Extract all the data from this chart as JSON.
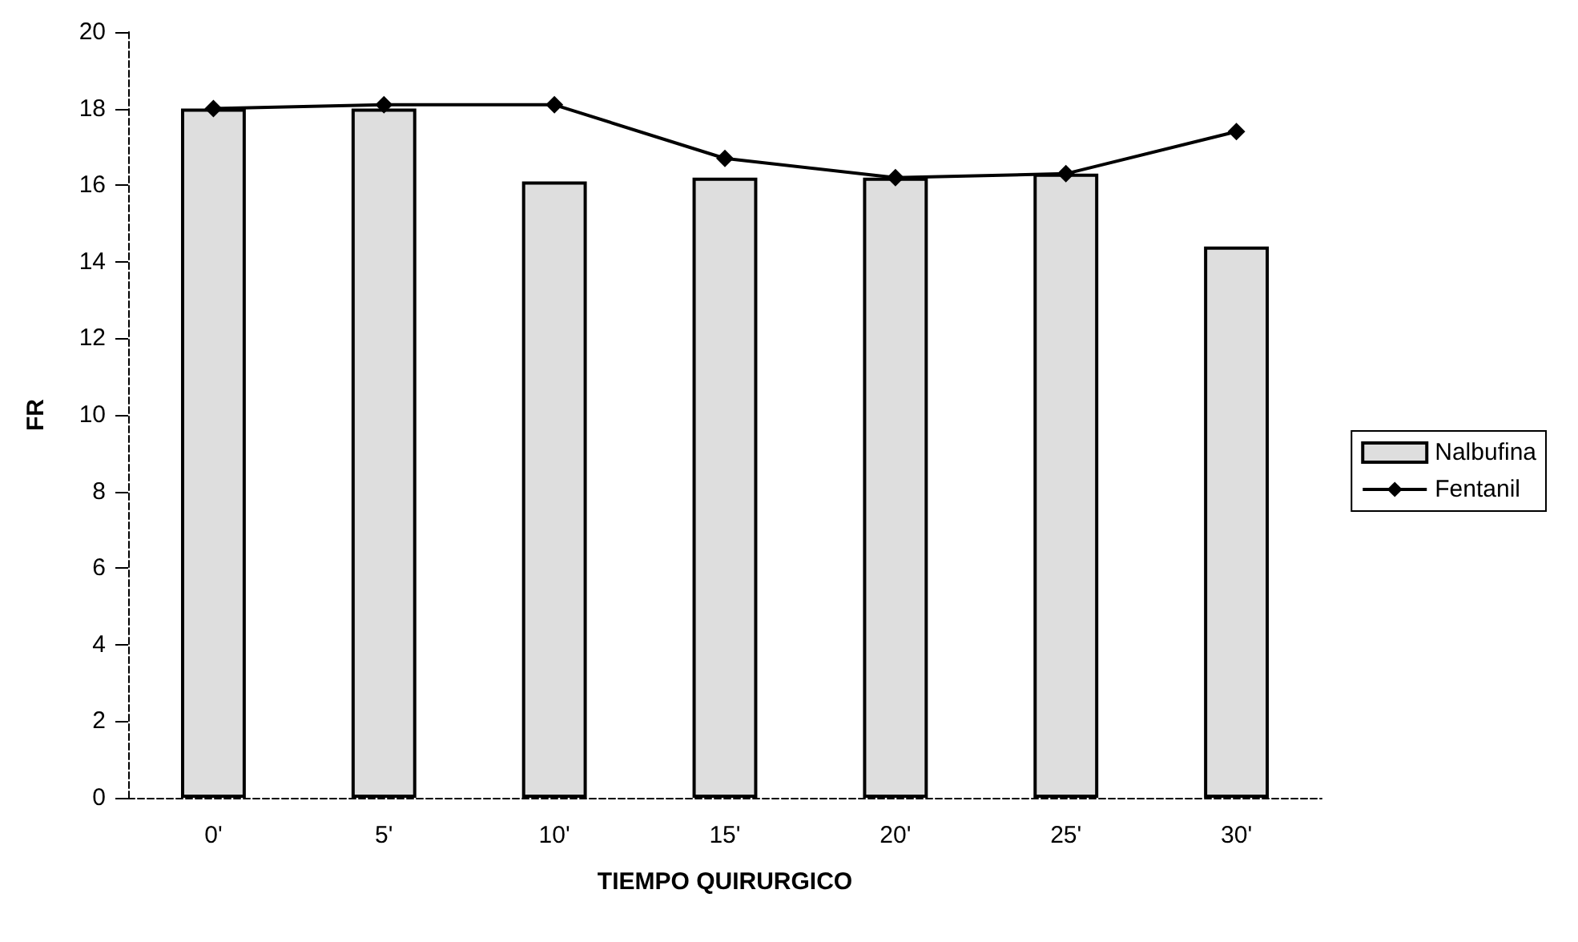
{
  "chart_data": {
    "type": "bar",
    "xlabel": "TIEMPO QUIRURGICO",
    "ylabel": "FR",
    "categories": [
      "0'",
      "5'",
      "10'",
      "15'",
      "20'",
      "25'",
      "30'"
    ],
    "series": [
      {
        "name": "Nalbufina",
        "color": "#dedede",
        "values": [
          18,
          18,
          16.1,
          16.2,
          16.2,
          16.3,
          14.4
        ]
      },
      {
        "name": "Fentanil",
        "type": "line",
        "color": "#000000",
        "marker": "diamond",
        "values": [
          18,
          18.1,
          18.1,
          16.7,
          16.2,
          16.3,
          17.4
        ]
      }
    ],
    "ylim": [
      0,
      20
    ],
    "yticks": [
      0,
      2,
      4,
      6,
      8,
      10,
      12,
      14,
      16,
      18,
      20
    ],
    "grid": false,
    "legend": "right"
  }
}
